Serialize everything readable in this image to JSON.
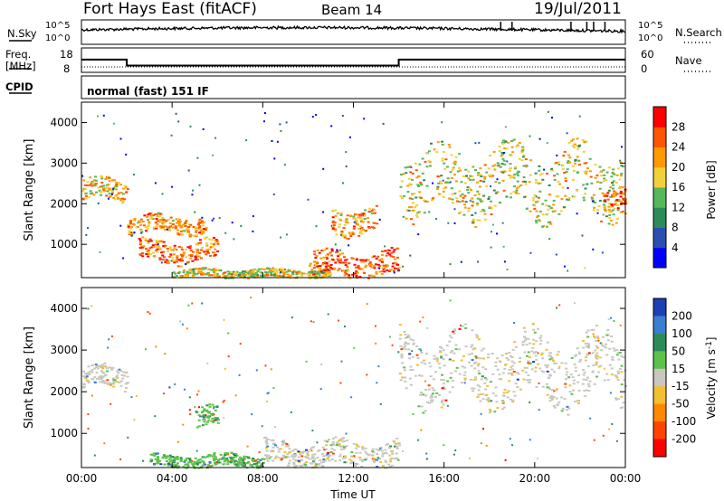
{
  "header": {
    "station": "Fort Hays East (fitACF)",
    "beam": "Beam 14",
    "date": "19/Jul/2011"
  },
  "top_panels": {
    "nsky_label": "N.Sky",
    "nsky_ticks": [
      "10^5",
      "10^0"
    ],
    "nsearch_label": "N.Search",
    "nsearch_ticks": [
      "10^5",
      "10^0"
    ],
    "freq_label": "Freq.",
    "freq_unit": "[MHz]",
    "freq_ticks": [
      "18",
      "8"
    ],
    "nave_label": "Nave",
    "nave_ticks": [
      "60",
      "0"
    ],
    "cpid_label": "CPID",
    "cpid_text": "normal (fast) 151 IF"
  },
  "chart_data": [
    {
      "type": "line",
      "name": "frequency",
      "x": [
        "00:00",
        "02:00",
        "02:00",
        "14:00",
        "14:00",
        "24:00"
      ],
      "values": [
        13.5,
        13.5,
        10.5,
        10.5,
        13.5,
        13.5
      ],
      "ylim": [
        8,
        18
      ]
    },
    {
      "type": "heatmap",
      "ylabel": "Slant Range [km]",
      "xlabel": "Time UT",
      "x_ticks": [
        "00:00",
        "04:00",
        "08:00",
        "12:00",
        "16:00",
        "20:00",
        "00:00"
      ],
      "y_ticks": [
        1000,
        2000,
        3000,
        4000
      ],
      "ylim": [
        180,
        4500
      ],
      "colorbar": {
        "label": "Power [dB]",
        "ticks": [
          4,
          8,
          12,
          16,
          20,
          24,
          28
        ],
        "colors": [
          "#0000ff",
          "#2a4fb0",
          "#2e8b57",
          "#56b85a",
          "#f2d03a",
          "#ff9900",
          "#ff5500",
          "#ff0000"
        ]
      },
      "echo_regions": [
        {
          "t": [
            0,
            2
          ],
          "range": [
            2100,
            2600
          ],
          "level": 20
        },
        {
          "t": [
            2,
            5.5
          ],
          "range": [
            1300,
            1700
          ],
          "level": 22
        },
        {
          "t": [
            2.5,
            6
          ],
          "range": [
            600,
            1100
          ],
          "level": 24
        },
        {
          "t": [
            4,
            11
          ],
          "range": [
            200,
            400
          ],
          "level": 18
        },
        {
          "t": [
            10,
            14
          ],
          "range": [
            200,
            800
          ],
          "level": 26
        },
        {
          "t": [
            11,
            13
          ],
          "range": [
            1300,
            1900
          ],
          "level": 22
        },
        {
          "t": [
            14,
            24
          ],
          "range": [
            1800,
            3300
          ],
          "level": 18
        },
        {
          "t": [
            23,
            24
          ],
          "range": [
            1900,
            2400
          ],
          "level": 26
        }
      ]
    },
    {
      "type": "heatmap",
      "ylabel": "Slant Range [km]",
      "xlabel": "Time UT",
      "x_ticks": [
        "00:00",
        "04:00",
        "08:00",
        "12:00",
        "16:00",
        "20:00",
        "00:00"
      ],
      "y_ticks": [
        1000,
        2000,
        3000,
        4000
      ],
      "ylim": [
        180,
        4500
      ],
      "colorbar": {
        "label": "Velocity [m s-1]",
        "ticks": [
          200,
          100,
          50,
          15,
          -15,
          -50,
          -100,
          -200
        ],
        "colors": [
          "#1b3fb5",
          "#3a7ed0",
          "#2e8b57",
          "#5cc24a",
          "#c8c8c0",
          "#f2c030",
          "#ff8800",
          "#ff4400",
          "#ff0000"
        ]
      },
      "echo_regions": [
        {
          "t": [
            0,
            2
          ],
          "range": [
            2100,
            2600
          ],
          "velocity": 0
        },
        {
          "t": [
            3,
            8
          ],
          "range": [
            200,
            500
          ],
          "velocity": 40
        },
        {
          "t": [
            5,
            6
          ],
          "range": [
            1100,
            1600
          ],
          "velocity": 40
        },
        {
          "t": [
            8,
            14
          ],
          "range": [
            200,
            800
          ],
          "velocity": 0
        },
        {
          "t": [
            14,
            24
          ],
          "range": [
            1800,
            3300
          ],
          "velocity": 0
        }
      ]
    }
  ],
  "power_cbar_unit_label": "Power [dB]",
  "velocity_cbar_unit_label": "Velocity [m s",
  "velocity_cbar_sup": "-1",
  "velocity_cbar_close": "]",
  "power_ylabel": "Slant Range [km]",
  "velocity_ylabel": "Slant Range [km]",
  "xaxis_label": "Time UT"
}
